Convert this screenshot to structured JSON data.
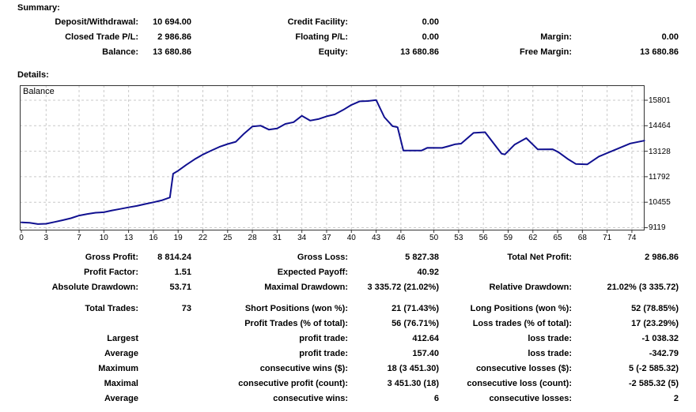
{
  "summary": {
    "header": "Summary:",
    "rows": [
      [
        "Deposit/Withdrawal:",
        "10 694.00",
        "Credit Facility:",
        "0.00",
        "",
        ""
      ],
      [
        "Closed Trade P/L:",
        "2 986.86",
        "Floating P/L:",
        "0.00",
        "Margin:",
        "0.00"
      ],
      [
        "Balance:",
        "13 680.86",
        "Equity:",
        "13 680.86",
        "Free Margin:",
        "13 680.86"
      ]
    ]
  },
  "details": {
    "header": "Details:"
  },
  "chart_data": {
    "type": "line",
    "title": "Balance",
    "legend_position": "top-left-inside",
    "grid": "dashed",
    "xlabel": "",
    "ylabel": "",
    "x_ticks": [
      0,
      3,
      7,
      10,
      13,
      16,
      19,
      22,
      25,
      28,
      31,
      34,
      37,
      40,
      43,
      46,
      50,
      53,
      56,
      59,
      62,
      65,
      68,
      71,
      74
    ],
    "y_ticks": [
      15801,
      14464,
      13128,
      11792,
      10455,
      9119
    ],
    "xlim": [
      -0.192,
      75.54
    ],
    "ylim": [
      8974,
      16587
    ],
    "series": [
      {
        "name": "Balance",
        "points": [
          [
            0,
            9400
          ],
          [
            1,
            9375
          ],
          [
            2,
            9310
          ],
          [
            3,
            9325
          ],
          [
            4,
            9415
          ],
          [
            5,
            9510
          ],
          [
            6,
            9615
          ],
          [
            7,
            9755
          ],
          [
            8,
            9840
          ],
          [
            9,
            9905
          ],
          [
            10,
            9930
          ],
          [
            11,
            10025
          ],
          [
            12,
            10105
          ],
          [
            13,
            10185
          ],
          [
            14,
            10260
          ],
          [
            15,
            10360
          ],
          [
            16,
            10450
          ],
          [
            17,
            10550
          ],
          [
            18,
            10705
          ],
          [
            18.4,
            11950
          ],
          [
            19,
            12105
          ],
          [
            20,
            12415
          ],
          [
            21,
            12705
          ],
          [
            22,
            12955
          ],
          [
            23,
            13155
          ],
          [
            24,
            13355
          ],
          [
            25,
            13505
          ],
          [
            26,
            13625
          ],
          [
            27,
            14055
          ],
          [
            28,
            14425
          ],
          [
            29,
            14470
          ],
          [
            30,
            14260
          ],
          [
            31,
            14325
          ],
          [
            32,
            14560
          ],
          [
            33,
            14650
          ],
          [
            34,
            14985
          ],
          [
            35,
            14735
          ],
          [
            36,
            14810
          ],
          [
            37,
            14955
          ],
          [
            38,
            15060
          ],
          [
            39,
            15290
          ],
          [
            40,
            15555
          ],
          [
            41,
            15745
          ],
          [
            42,
            15760
          ],
          [
            43,
            15815
          ],
          [
            44,
            14910
          ],
          [
            45,
            14440
          ],
          [
            45.6,
            14385
          ],
          [
            46.3,
            13165
          ],
          [
            48.5,
            13160
          ],
          [
            49.2,
            13305
          ],
          [
            51,
            13300
          ],
          [
            51.8,
            13395
          ],
          [
            52.6,
            13495
          ],
          [
            53.3,
            13525
          ],
          [
            54.8,
            14090
          ],
          [
            56.2,
            14125
          ],
          [
            58.2,
            13005
          ],
          [
            58.6,
            12960
          ],
          [
            59.8,
            13480
          ],
          [
            61.2,
            13815
          ],
          [
            62.6,
            13225
          ],
          [
            64.4,
            13230
          ],
          [
            65.1,
            13080
          ],
          [
            66.3,
            12700
          ],
          [
            67.2,
            12460
          ],
          [
            68.6,
            12440
          ],
          [
            70,
            12850
          ],
          [
            71.9,
            13190
          ],
          [
            73.8,
            13535
          ],
          [
            75.5,
            13680.86
          ]
        ]
      }
    ],
    "colors": {
      "line": "#101090",
      "grid": "#c9c9c9",
      "frame": "#333333",
      "tick_text": "#000000"
    }
  },
  "stats": {
    "rows": [
      [
        "Gross Profit:",
        "8 814.24",
        "Gross Loss:",
        "5 827.38",
        "Total Net Profit:",
        "2 986.86"
      ],
      [
        "Profit Factor:",
        "1.51",
        "Expected Payoff:",
        "40.92",
        "",
        ""
      ],
      [
        "Absolute Drawdown:",
        "53.71",
        "Maximal Drawdown:",
        "3 335.72 (21.02%)",
        "Relative Drawdown:",
        "21.02% (3 335.72)"
      ]
    ]
  },
  "trades": {
    "rows": [
      [
        "Total Trades:",
        "73",
        "Short Positions (won %):",
        "21 (71.43%)",
        "Long Positions (won %):",
        "52 (78.85%)"
      ],
      [
        "",
        "",
        "Profit Trades (% of total):",
        "56 (76.71%)",
        "Loss trades (% of total):",
        "17 (23.29%)"
      ],
      [
        "Largest",
        "",
        "profit trade:",
        "412.64",
        "loss trade:",
        "-1 038.32"
      ],
      [
        "Average",
        "",
        "profit trade:",
        "157.40",
        "loss trade:",
        "-342.79"
      ],
      [
        "Maximum",
        "",
        "consecutive wins ($):",
        "18 (3 451.30)",
        "consecutive losses ($):",
        "5 (-2 585.32)"
      ],
      [
        "Maximal",
        "",
        "consecutive profit (count):",
        "3 451.30 (18)",
        "consecutive loss (count):",
        "-2 585.32 (5)"
      ],
      [
        "Average",
        "",
        "consecutive wins:",
        "6",
        "consecutive losses:",
        "2"
      ]
    ]
  }
}
